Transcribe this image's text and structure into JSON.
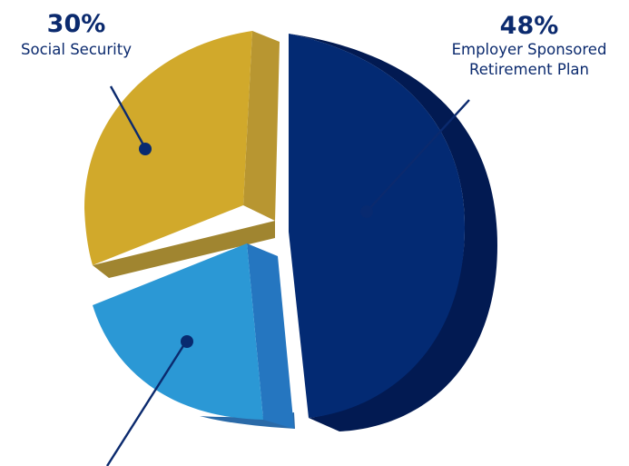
{
  "chart_data": {
    "type": "pie",
    "slices": [
      {
        "percent_text": "30%",
        "value": 30,
        "lines": [
          "Social Security"
        ],
        "top_color": "#D1A92B",
        "side_color": "#B89631",
        "bottom_color": "#A08530",
        "dot_color": "#082A70"
      },
      {
        "percent_text": "48%",
        "value": 48,
        "lines": [
          "Employer Sponsored",
          "Retirement Plan"
        ],
        "top_color": "#032A73",
        "side_color": "#021A52",
        "bottom_color": "#021A52",
        "dot_color": "#082A70"
      },
      {
        "percent_text": "",
        "value": 22,
        "lines": [],
        "top_color": "#2B98D5",
        "side_color": "#2576C0",
        "bottom_color": "#2A6AA8",
        "dot_color": "#082A70"
      }
    ],
    "label_colors": {
      "percent": "#0B2A6E",
      "name": "#0B2A6E",
      "leader": "#0B2A6E"
    }
  }
}
